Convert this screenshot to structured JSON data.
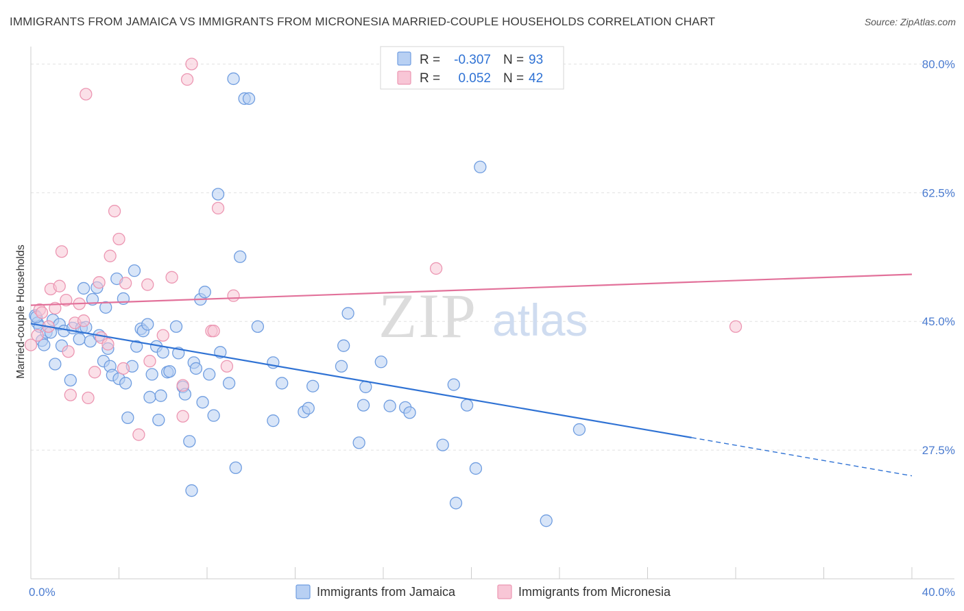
{
  "header": {
    "title": "IMMIGRANTS FROM JAMAICA VS IMMIGRANTS FROM MICRONESIA MARRIED-COUPLE HOUSEHOLDS CORRELATION CHART",
    "source": "Source: ZipAtlas.com"
  },
  "watermark": {
    "zip": "ZIP",
    "atlas": "atlas"
  },
  "colors": {
    "jamaica_fill": "#b8d0f3",
    "jamaica_stroke": "#6f9de0",
    "jamaica_line": "#2f72d4",
    "micronesia_fill": "#f8c6d6",
    "micronesia_stroke": "#ec96b2",
    "micronesia_line": "#e2719a",
    "grid": "#e1e1e1",
    "tick_label": "#4a7bd0"
  },
  "legend": {
    "rows": [
      {
        "r_label": "R =",
        "r_value": "-0.307",
        "n_label": "N =",
        "n_value": "93"
      },
      {
        "r_label": "R =",
        "r_value": "0.052",
        "n_label": "N =",
        "n_value": "42"
      }
    ]
  },
  "chart_data": {
    "type": "scatter",
    "title": "IMMIGRANTS FROM JAMAICA VS IMMIGRANTS FROM MICRONESIA MARRIED-COUPLE HOUSEHOLDS CORRELATION CHART",
    "xlabel": "",
    "ylabel": "Married-couple Households",
    "xlim": [
      0,
      40
    ],
    "ylim": [
      10,
      82
    ],
    "x_tick_labels": {
      "left": "0.0%",
      "right": "40.0%"
    },
    "y_ticks": [
      {
        "value": 27.5,
        "label": "27.5%"
      },
      {
        "value": 45.0,
        "label": "45.0%"
      },
      {
        "value": 62.5,
        "label": "62.5%"
      },
      {
        "value": 80.0,
        "label": "80.0%"
      }
    ],
    "legend_placement": "top-center",
    "series": [
      {
        "name": "Immigrants from Jamaica",
        "R": -0.307,
        "N": 93,
        "trend": {
          "x0": 0,
          "y0": 44.7,
          "x1": 30.0,
          "y1": 29.2,
          "dash_to_x": 40,
          "dash_to_y": 24.0
        },
        "points": [
          [
            0.2,
            45.8
          ],
          [
            0.3,
            44.8
          ],
          [
            0.4,
            44.3
          ],
          [
            0.5,
            42.4
          ],
          [
            0.6,
            41.8
          ],
          [
            0.7,
            43.5
          ],
          [
            0.9,
            43.5
          ],
          [
            1.0,
            45.2
          ],
          [
            1.1,
            39.2
          ],
          [
            1.3,
            44.6
          ],
          [
            1.4,
            41.7
          ],
          [
            1.5,
            43.7
          ],
          [
            1.8,
            37.0
          ],
          [
            1.9,
            44.1
          ],
          [
            2.2,
            42.6
          ],
          [
            2.3,
            44.1
          ],
          [
            2.4,
            49.5
          ],
          [
            2.5,
            44.2
          ],
          [
            2.7,
            42.3
          ],
          [
            2.8,
            48.0
          ],
          [
            3.0,
            49.6
          ],
          [
            3.1,
            43.1
          ],
          [
            3.3,
            39.6
          ],
          [
            3.4,
            46.9
          ],
          [
            3.5,
            41.3
          ],
          [
            3.6,
            38.9
          ],
          [
            3.7,
            37.7
          ],
          [
            3.9,
            50.8
          ],
          [
            4.0,
            37.2
          ],
          [
            4.2,
            48.1
          ],
          [
            4.3,
            36.6
          ],
          [
            4.4,
            31.9
          ],
          [
            4.6,
            38.9
          ],
          [
            4.7,
            51.9
          ],
          [
            4.8,
            41.6
          ],
          [
            5.0,
            44.0
          ],
          [
            5.1,
            43.7
          ],
          [
            5.3,
            44.6
          ],
          [
            5.4,
            34.7
          ],
          [
            5.5,
            37.8
          ],
          [
            5.7,
            41.6
          ],
          [
            5.8,
            31.6
          ],
          [
            5.9,
            34.9
          ],
          [
            6.0,
            40.8
          ],
          [
            6.2,
            38.1
          ],
          [
            6.3,
            38.2
          ],
          [
            6.6,
            44.3
          ],
          [
            6.7,
            40.7
          ],
          [
            6.9,
            36.1
          ],
          [
            7.0,
            35.1
          ],
          [
            7.2,
            28.7
          ],
          [
            7.3,
            22.0
          ],
          [
            7.4,
            39.4
          ],
          [
            7.5,
            38.6
          ],
          [
            7.7,
            48.0
          ],
          [
            7.8,
            34.0
          ],
          [
            7.9,
            49.0
          ],
          [
            8.1,
            37.8
          ],
          [
            8.3,
            32.2
          ],
          [
            8.5,
            62.3
          ],
          [
            8.6,
            40.8
          ],
          [
            9.0,
            36.6
          ],
          [
            9.2,
            78.0
          ],
          [
            9.3,
            25.1
          ],
          [
            9.5,
            53.8
          ],
          [
            9.7,
            75.3
          ],
          [
            9.9,
            75.3
          ],
          [
            10.3,
            44.3
          ],
          [
            11.0,
            39.4
          ],
          [
            11.0,
            31.5
          ],
          [
            11.4,
            36.6
          ],
          [
            12.4,
            32.7
          ],
          [
            12.6,
            33.2
          ],
          [
            12.8,
            36.2
          ],
          [
            14.1,
            38.9
          ],
          [
            14.2,
            41.7
          ],
          [
            14.4,
            46.1
          ],
          [
            14.9,
            28.5
          ],
          [
            15.1,
            33.6
          ],
          [
            15.2,
            36.1
          ],
          [
            15.9,
            39.5
          ],
          [
            16.3,
            33.5
          ],
          [
            17.0,
            33.3
          ],
          [
            17.2,
            32.6
          ],
          [
            18.7,
            28.2
          ],
          [
            19.2,
            36.4
          ],
          [
            19.3,
            20.3
          ],
          [
            19.8,
            33.6
          ],
          [
            20.2,
            25.0
          ],
          [
            20.4,
            66.0
          ],
          [
            23.4,
            17.9
          ],
          [
            24.9,
            30.3
          ],
          [
            0.25,
            45.6
          ]
        ]
      },
      {
        "name": "Immigrants from Micronesia",
        "R": 0.052,
        "N": 42,
        "trend": {
          "x0": 0,
          "y0": 47.2,
          "x1": 40,
          "y1": 51.4
        },
        "points": [
          [
            0.0,
            41.8
          ],
          [
            0.3,
            43.1
          ],
          [
            0.4,
            46.6
          ],
          [
            0.5,
            46.2
          ],
          [
            0.8,
            44.3
          ],
          [
            0.9,
            49.4
          ],
          [
            1.1,
            46.8
          ],
          [
            1.3,
            49.8
          ],
          [
            1.4,
            54.5
          ],
          [
            1.6,
            47.9
          ],
          [
            1.7,
            40.9
          ],
          [
            1.8,
            35.0
          ],
          [
            2.0,
            44.8
          ],
          [
            2.2,
            47.4
          ],
          [
            2.4,
            45.1
          ],
          [
            2.5,
            75.9
          ],
          [
            2.6,
            34.6
          ],
          [
            2.9,
            38.1
          ],
          [
            3.1,
            50.3
          ],
          [
            3.2,
            42.8
          ],
          [
            3.5,
            41.9
          ],
          [
            3.6,
            53.9
          ],
          [
            3.8,
            60.0
          ],
          [
            4.0,
            56.2
          ],
          [
            4.2,
            38.6
          ],
          [
            4.3,
            50.2
          ],
          [
            4.9,
            29.6
          ],
          [
            5.3,
            50.0
          ],
          [
            5.4,
            39.6
          ],
          [
            6.0,
            43.1
          ],
          [
            6.4,
            51.0
          ],
          [
            6.9,
            32.1
          ],
          [
            6.9,
            36.3
          ],
          [
            7.1,
            77.9
          ],
          [
            7.3,
            80.0
          ],
          [
            8.2,
            43.7
          ],
          [
            8.5,
            60.4
          ],
          [
            8.9,
            38.9
          ],
          [
            9.2,
            48.5
          ],
          [
            18.4,
            52.2
          ],
          [
            32.0,
            44.3
          ],
          [
            8.3,
            43.7
          ]
        ]
      }
    ]
  },
  "bottom_legend": {
    "items": [
      {
        "label": "Immigrants from Jamaica"
      },
      {
        "label": "Immigrants from Micronesia"
      }
    ]
  }
}
